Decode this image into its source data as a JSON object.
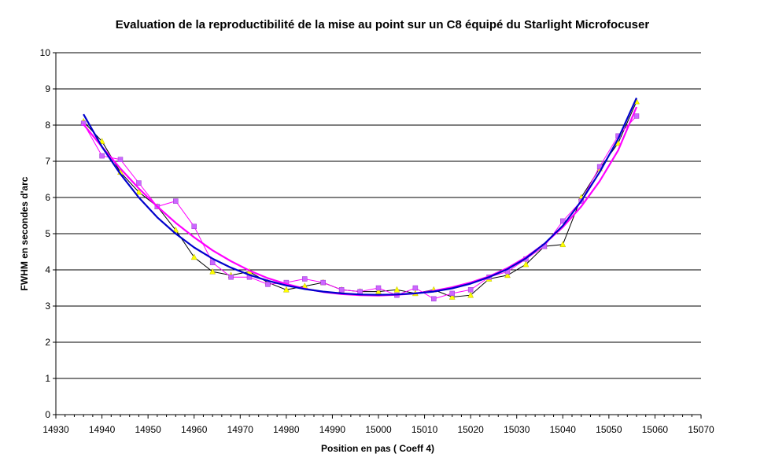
{
  "chart_data": {
    "type": "scatter",
    "title": "Evaluation de la reproductibilité de la mise au point sur un  C8 équipé du Starlight Microfocuser",
    "xlabel": "Position en pas ( Coeff 4)",
    "ylabel": "FWHM en secondes d'arc",
    "xlim": [
      14930,
      15070
    ],
    "ylim": [
      0,
      10
    ],
    "x_ticks": [
      "14930",
      "14940",
      "14950",
      "14960",
      "14970",
      "14980",
      "14990",
      "15000",
      "15010",
      "15020",
      "15030",
      "15040",
      "15050",
      "15060",
      "15070"
    ],
    "y_ticks": [
      "0",
      "1",
      "2",
      "3",
      "4",
      "5",
      "6",
      "7",
      "8",
      "9",
      "10"
    ],
    "grid": "horizontal",
    "legend": "none",
    "series": [
      {
        "color": "#000000",
        "marker": "triangle",
        "marker_color": "#ffff00",
        "x": [
          14936,
          14940,
          14944,
          14948,
          14952,
          14956,
          14960,
          14964,
          14968,
          14972,
          14976,
          14980,
          14984,
          14988,
          14992,
          14996,
          15000,
          15004,
          15008,
          15012,
          15016,
          15020,
          15024,
          15028,
          15032,
          15036,
          15040,
          15044,
          15048,
          15052,
          15056
        ],
        "y": [
          8.1,
          7.55,
          6.7,
          6.15,
          5.75,
          5.1,
          4.35,
          3.95,
          3.85,
          3.95,
          3.65,
          3.45,
          3.55,
          3.65,
          3.45,
          3.4,
          3.4,
          3.45,
          3.35,
          3.45,
          3.25,
          3.3,
          3.75,
          3.85,
          4.15,
          4.65,
          4.7,
          6.0,
          6.8,
          7.5,
          8.65
        ]
      },
      {
        "color": "#ff00ff",
        "marker": "square",
        "marker_color": "#cc66ff",
        "x": [
          14936,
          14940,
          14944,
          14948,
          14952,
          14956,
          14960,
          14964,
          14968,
          14972,
          14976,
          14980,
          14984,
          14988,
          14992,
          14996,
          15000,
          15004,
          15008,
          15012,
          15016,
          15020,
          15024,
          15028,
          15032,
          15036,
          15040,
          15044,
          15048,
          15052,
          15056
        ],
        "y": [
          8.05,
          7.15,
          7.05,
          6.4,
          5.75,
          5.9,
          5.2,
          4.2,
          3.8,
          3.8,
          3.6,
          3.65,
          3.75,
          3.65,
          3.45,
          3.4,
          3.5,
          3.3,
          3.5,
          3.2,
          3.35,
          3.45,
          3.8,
          3.95,
          4.3,
          4.65,
          5.35,
          5.9,
          6.85,
          7.7,
          8.25
        ]
      },
      {
        "color": "#0000cc",
        "style": "trendline",
        "x": [
          14936,
          14940,
          14944,
          14948,
          14952,
          14956,
          14960,
          14964,
          14968,
          14972,
          14976,
          14980,
          14984,
          14988,
          14992,
          14996,
          15000,
          15004,
          15008,
          15012,
          15016,
          15020,
          15024,
          15028,
          15032,
          15036,
          15040,
          15044,
          15048,
          15052,
          15056
        ],
        "y": [
          8.3,
          7.4,
          6.65,
          6.0,
          5.45,
          5.0,
          4.62,
          4.31,
          4.06,
          3.86,
          3.7,
          3.57,
          3.47,
          3.4,
          3.35,
          3.32,
          3.31,
          3.32,
          3.35,
          3.4,
          3.49,
          3.62,
          3.8,
          4.02,
          4.32,
          4.72,
          5.22,
          5.9,
          6.7,
          7.62,
          8.75
        ]
      },
      {
        "color": "#ff00ff",
        "style": "trendline",
        "x": [
          14936,
          14940,
          14944,
          14948,
          14952,
          14956,
          14960,
          14964,
          14968,
          14972,
          14976,
          14980,
          14984,
          14988,
          14992,
          14996,
          15000,
          15004,
          15008,
          15012,
          15016,
          15020,
          15024,
          15028,
          15032,
          15036,
          15040,
          15044,
          15048,
          15052,
          15056
        ],
        "y": [
          8.02,
          7.4,
          6.8,
          6.25,
          5.75,
          5.3,
          4.9,
          4.54,
          4.24,
          3.98,
          3.77,
          3.61,
          3.48,
          3.39,
          3.33,
          3.3,
          3.29,
          3.31,
          3.35,
          3.42,
          3.52,
          3.65,
          3.82,
          4.05,
          4.35,
          4.72,
          5.18,
          5.75,
          6.45,
          7.3,
          8.5
        ]
      }
    ]
  }
}
